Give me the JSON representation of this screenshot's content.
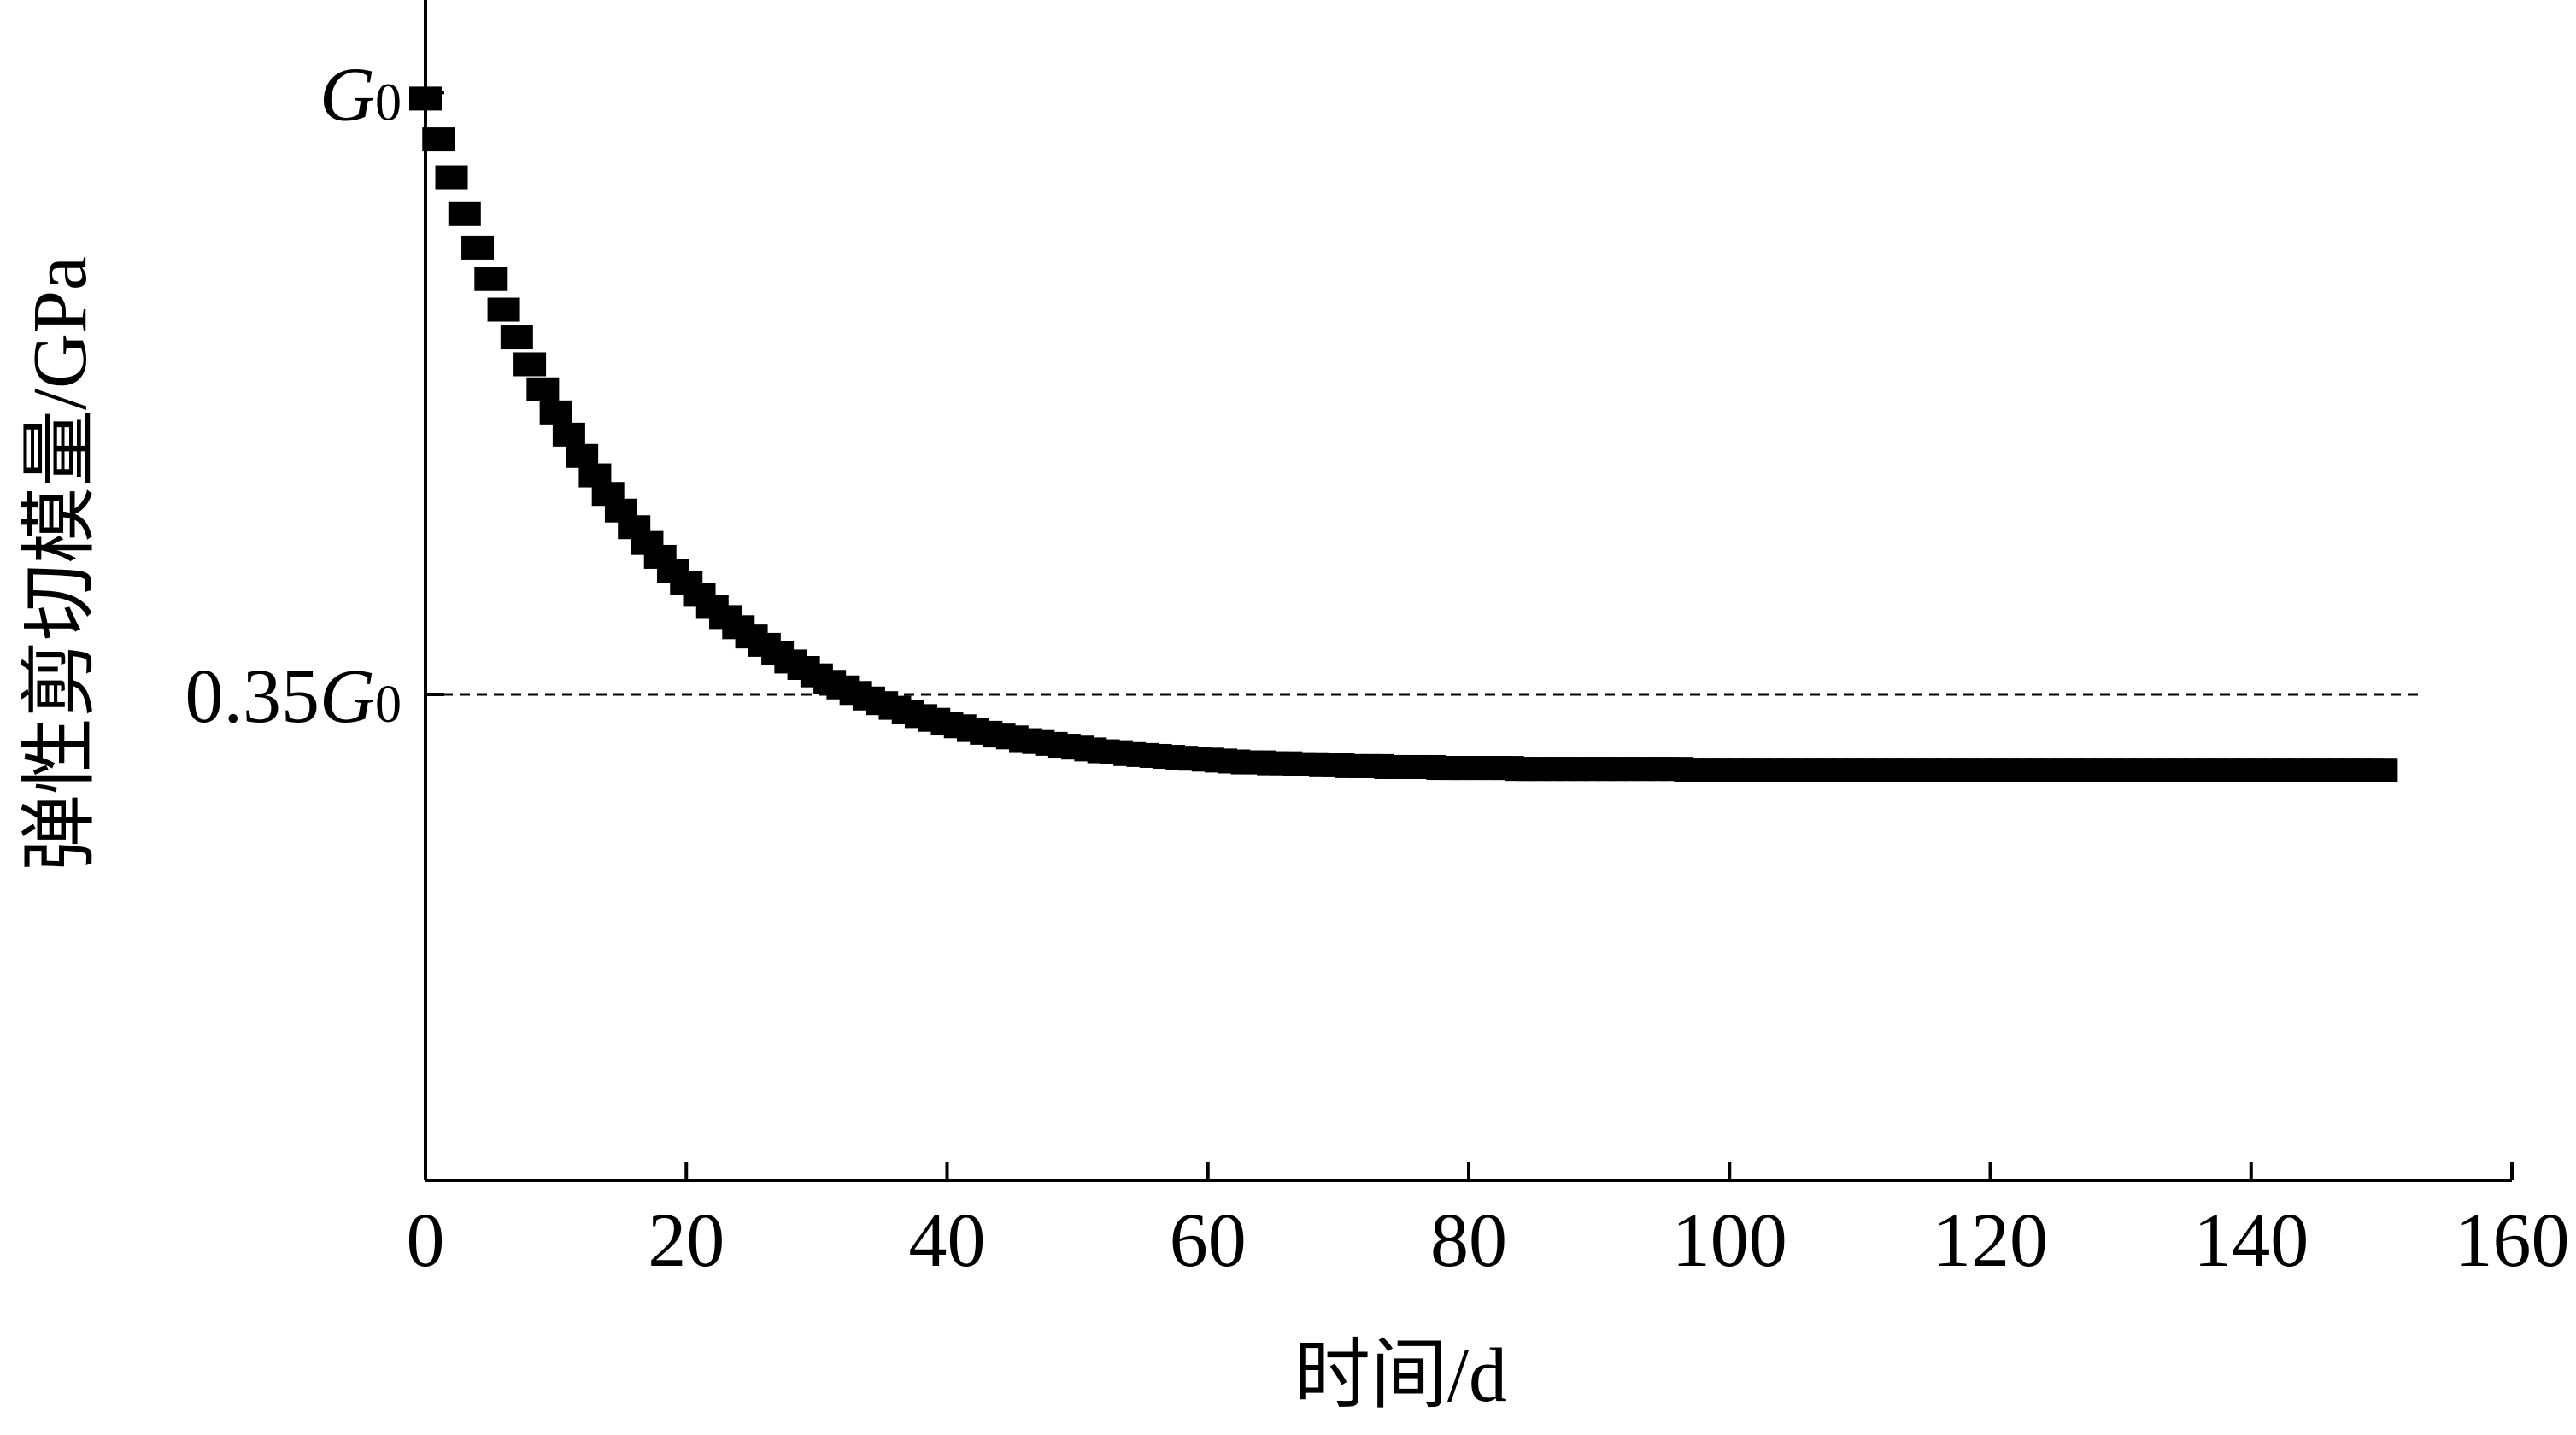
{
  "chart_data": {
    "type": "scatter",
    "xlabel": "时间/d",
    "ylabel": "弹性剪切模量/GPa",
    "xlim": [
      0,
      160
    ],
    "x_ticks": [
      "0",
      "20",
      "40",
      "60",
      "80",
      "100",
      "120",
      "140",
      "160"
    ],
    "y_tick_labels": [
      {
        "value": 1.0,
        "prefix": "",
        "symbol": "G",
        "subscript": "0"
      },
      {
        "value": 0.35,
        "prefix": "0.35",
        "symbol": "G",
        "subscript": "0"
      }
    ],
    "ylim": [
      -0.175,
      1.1
    ],
    "reference_line": {
      "value": 0.35,
      "style": "dashed"
    },
    "marker": "square",
    "color": "#000000",
    "series": [
      {
        "x": [
          0,
          1,
          2,
          3,
          4,
          5,
          6,
          7,
          8,
          9,
          10,
          11,
          12,
          13,
          14,
          15,
          16,
          17,
          18,
          19,
          20,
          21,
          22,
          23,
          24,
          25,
          26,
          27,
          28,
          29,
          30,
          31,
          32,
          33,
          34,
          35,
          36,
          37,
          38,
          39,
          40,
          41,
          42,
          43,
          44,
          45,
          46,
          47,
          48,
          49,
          50,
          51,
          52,
          53,
          54,
          55,
          56,
          57,
          58,
          59,
          60,
          61,
          62,
          63,
          64,
          65,
          66,
          67,
          68,
          69,
          70,
          71,
          72,
          73,
          74,
          75,
          76,
          77,
          78,
          79,
          80,
          81,
          82,
          83,
          84,
          85,
          86,
          87,
          88,
          89,
          90,
          91,
          92,
          93,
          94,
          95,
          96,
          97,
          98,
          99,
          100,
          101,
          102,
          103,
          104,
          105,
          106,
          107,
          108,
          109,
          110,
          111,
          112,
          113,
          114,
          115,
          116,
          117,
          118,
          119,
          120,
          121,
          122,
          123,
          124,
          125,
          126,
          127,
          128,
          129,
          130,
          131,
          132,
          133,
          134,
          135,
          136,
          137,
          138,
          139,
          140,
          141,
          142,
          143,
          144,
          145,
          146,
          147,
          148,
          149,
          150
        ],
        "y": [
          1.0,
          0.956,
          0.915,
          0.876,
          0.839,
          0.805,
          0.772,
          0.742,
          0.713,
          0.686,
          0.661,
          0.637,
          0.614,
          0.593,
          0.573,
          0.555,
          0.537,
          0.52,
          0.505,
          0.49,
          0.477,
          0.464,
          0.451,
          0.44,
          0.429,
          0.419,
          0.41,
          0.401,
          0.392,
          0.385,
          0.377,
          0.37,
          0.364,
          0.358,
          0.352,
          0.347,
          0.342,
          0.337,
          0.333,
          0.329,
          0.325,
          0.322,
          0.318,
          0.315,
          0.312,
          0.31,
          0.307,
          0.305,
          0.303,
          0.301,
          0.299,
          0.297,
          0.295,
          0.294,
          0.292,
          0.291,
          0.29,
          0.289,
          0.288,
          0.287,
          0.286,
          0.285,
          0.284,
          0.283,
          0.283,
          0.282,
          0.282,
          0.281,
          0.281,
          0.28,
          0.28,
          0.279,
          0.279,
          0.279,
          0.278,
          0.278,
          0.278,
          0.278,
          0.277,
          0.277,
          0.277,
          0.277,
          0.277,
          0.277,
          0.276,
          0.276,
          0.276,
          0.276,
          0.276,
          0.276,
          0.276,
          0.276,
          0.276,
          0.276,
          0.276,
          0.276,
          0.276,
          0.275,
          0.275,
          0.275,
          0.275,
          0.275,
          0.275,
          0.275,
          0.275,
          0.275,
          0.275,
          0.275,
          0.275,
          0.275,
          0.275,
          0.275,
          0.275,
          0.275,
          0.275,
          0.275,
          0.275,
          0.275,
          0.275,
          0.275,
          0.275,
          0.275,
          0.275,
          0.275,
          0.275,
          0.275,
          0.275,
          0.275,
          0.275,
          0.275,
          0.275,
          0.275,
          0.275,
          0.275,
          0.275,
          0.275,
          0.275,
          0.275,
          0.275,
          0.275,
          0.275,
          0.275,
          0.275,
          0.275,
          0.275,
          0.275,
          0.275,
          0.275,
          0.275,
          0.275,
          0.275
        ]
      }
    ]
  }
}
